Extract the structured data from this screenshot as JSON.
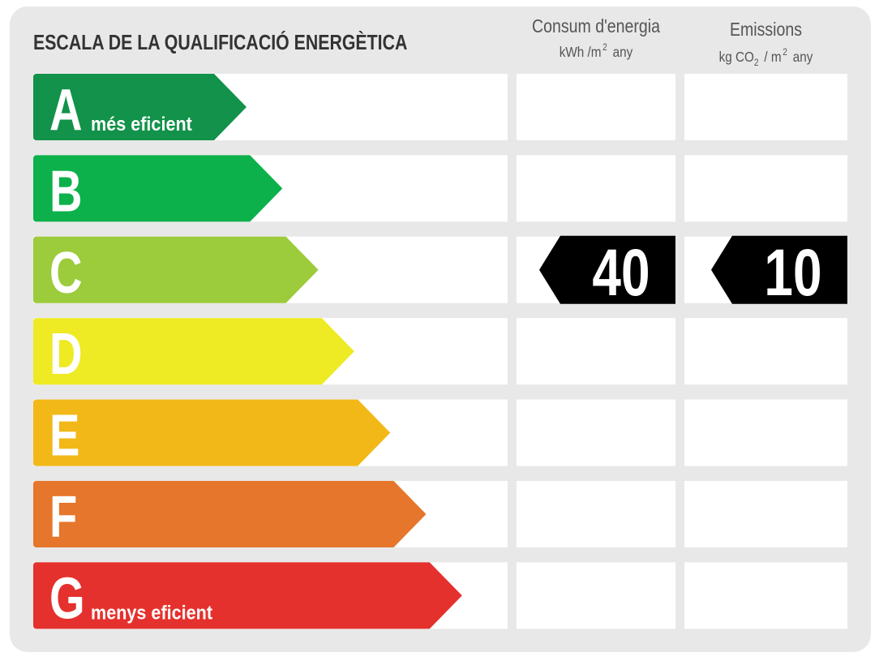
{
  "title": "ESCALA DE LA QUALIFICACIÓ ENERGÈTICA",
  "columns": [
    {
      "title": "Consum d'energia",
      "unit": [
        "kWh /m",
        "2",
        "any"
      ]
    },
    {
      "title": "Emissions",
      "unit": [
        "kg CO",
        "2",
        "/ m",
        "2",
        "any"
      ]
    }
  ],
  "grades": [
    {
      "letter": "A",
      "note": "més eficient",
      "color": "#12924a"
    },
    {
      "letter": "B",
      "color": "#0db14b"
    },
    {
      "letter": "C",
      "color": "#9ccb3b"
    },
    {
      "letter": "D",
      "color": "#eeea24"
    },
    {
      "letter": "E",
      "color": "#f2b817"
    },
    {
      "letter": "F",
      "color": "#e5762b"
    },
    {
      "letter": "G",
      "note": "menys eficient",
      "color": "#e5312d"
    }
  ],
  "ratings": [
    {
      "grade": "C",
      "value": "40"
    },
    {
      "grade": "C",
      "value": "10"
    }
  ]
}
